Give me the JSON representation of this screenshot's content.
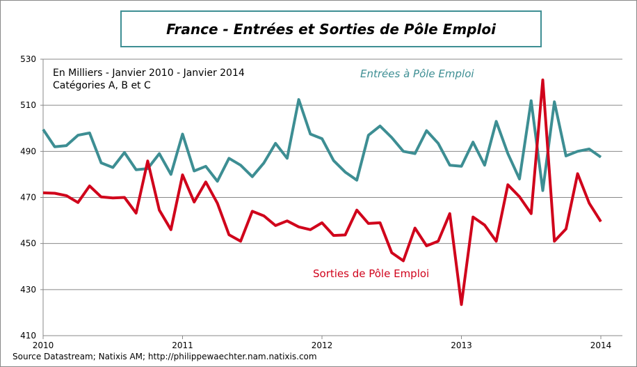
{
  "chart_data": {
    "type": "line",
    "title": "France - Entrées et Sorties de Pôle Emploi",
    "annotations": [
      "En Milliers  - Janvier 2010 - Janvier 2014",
      "Catégories A, B et C"
    ],
    "source": "Source Datastream; Natixis AM; http://philippewaechter.nam.natixis.com",
    "x_start": "2010-01",
    "x_frequency": "monthly",
    "x_ticks": [
      "2010",
      "2011",
      "2012",
      "2013",
      "2014"
    ],
    "y_ticks": [
      410,
      430,
      450,
      470,
      490,
      510,
      530
    ],
    "ylim": [
      410,
      530
    ],
    "grid": true,
    "series": [
      {
        "name": "Entrées à Pôle Emploi",
        "color": "#3d8e93",
        "values": [
          499.5,
          492,
          492.5,
          497,
          498,
          485,
          483,
          489.5,
          482,
          482.5,
          489,
          480,
          497.5,
          481.5,
          483.5,
          477,
          487,
          484,
          479,
          485,
          493.5,
          487,
          512.5,
          497.5,
          495.5,
          486,
          481,
          477.5,
          497,
          501,
          496,
          490,
          489,
          499,
          493.5,
          484,
          483.5,
          494,
          484,
          503,
          489,
          478,
          512,
          473,
          511.5,
          488,
          490,
          491,
          487.5
        ]
      },
      {
        "name": "Sorties de Pôle Emploi",
        "color": "#d0021b",
        "values": [
          472,
          471.8,
          470.8,
          467.8,
          475,
          470.2,
          469.8,
          470,
          463.2,
          485.8,
          464.5,
          456,
          479.8,
          468,
          476.7,
          467.5,
          453.8,
          451,
          464,
          462,
          457.8,
          459.8,
          457.2,
          456,
          459,
          453.5,
          453.7,
          464.5,
          458.7,
          459,
          446,
          442.5,
          456.7,
          449,
          451,
          463,
          423.5,
          461.5,
          458,
          451,
          475.5,
          470.3,
          463,
          521,
          451,
          456.3,
          480.3,
          467.5,
          459.5
        ]
      }
    ]
  }
}
